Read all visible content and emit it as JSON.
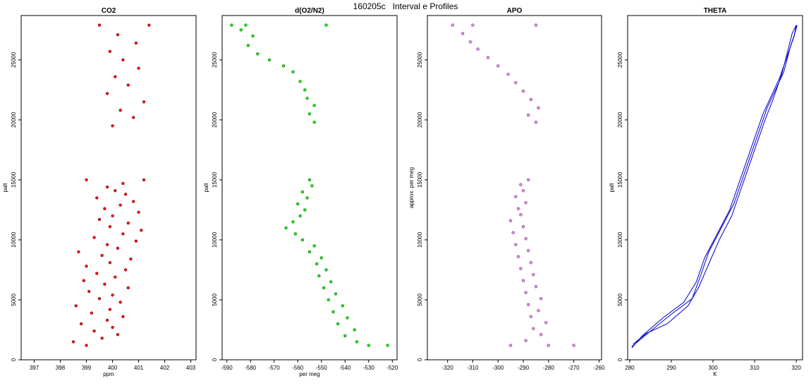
{
  "figure": {
    "title": "160205c   Interval e Profiles"
  },
  "chart_data": [
    {
      "type": "scatter",
      "title": "CO2",
      "xlabel": "ppm",
      "ylabel": "palt",
      "xlim": [
        396.5,
        403.2
      ],
      "ylim": [
        0,
        28700
      ],
      "xticks": [
        397,
        398,
        399,
        400,
        401,
        402,
        403
      ],
      "yticks": [
        0,
        5000,
        10000,
        15000,
        20000,
        25000
      ],
      "series": [
        {
          "color": "#ff0000",
          "points": [
            [
              399.0,
              1200
            ],
            [
              398.5,
              1500
            ],
            [
              399.6,
              1800
            ],
            [
              400.2,
              2100
            ],
            [
              399.3,
              2400
            ],
            [
              400.0,
              2700
            ],
            [
              398.8,
              3000
            ],
            [
              399.8,
              3300
            ],
            [
              400.4,
              3600
            ],
            [
              399.2,
              3900
            ],
            [
              399.9,
              4200
            ],
            [
              398.6,
              4500
            ],
            [
              400.3,
              4800
            ],
            [
              399.5,
              5100
            ],
            [
              400.0,
              5400
            ],
            [
              399.1,
              5700
            ],
            [
              400.6,
              6000
            ],
            [
              399.7,
              6300
            ],
            [
              398.9,
              6600
            ],
            [
              400.1,
              6900
            ],
            [
              399.4,
              7200
            ],
            [
              400.5,
              7500
            ],
            [
              399.0,
              7800
            ],
            [
              399.9,
              8100
            ],
            [
              400.7,
              8400
            ],
            [
              399.6,
              8700
            ],
            [
              398.7,
              9000
            ],
            [
              400.2,
              9300
            ],
            [
              399.8,
              9600
            ],
            [
              400.9,
              9900
            ],
            [
              399.3,
              10200
            ],
            [
              400.4,
              10500
            ],
            [
              401.1,
              10800
            ],
            [
              399.9,
              11100
            ],
            [
              400.6,
              11400
            ],
            [
              399.5,
              11700
            ],
            [
              400.0,
              12000
            ],
            [
              401.0,
              12300
            ],
            [
              399.7,
              12600
            ],
            [
              400.3,
              12900
            ],
            [
              400.8,
              13200
            ],
            [
              399.4,
              13500
            ],
            [
              400.5,
              13800
            ],
            [
              400.1,
              14100
            ],
            [
              399.8,
              14400
            ],
            [
              400.4,
              14700
            ],
            [
              401.2,
              15000
            ],
            [
              399.0,
              15000
            ],
            [
              400.0,
              19500
            ],
            [
              400.8,
              20200
            ],
            [
              400.3,
              20800
            ],
            [
              401.2,
              21500
            ],
            [
              399.8,
              22200
            ],
            [
              400.6,
              22900
            ],
            [
              400.1,
              23600
            ],
            [
              401.0,
              24300
            ],
            [
              400.4,
              25000
            ],
            [
              399.9,
              25700
            ],
            [
              400.9,
              26400
            ],
            [
              400.2,
              27100
            ],
            [
              401.4,
              27900
            ],
            [
              399.5,
              27900
            ]
          ]
        }
      ]
    },
    {
      "type": "scatter",
      "title": "d(O2/N2)",
      "xlabel": "per meg",
      "ylabel": "palt",
      "xlim": [
        -592,
        -518
      ],
      "ylim": [
        0,
        28700
      ],
      "xticks": [
        -590,
        -580,
        -570,
        -560,
        -550,
        -540,
        -530,
        -520
      ],
      "yticks": [
        0,
        5000,
        10000,
        15000,
        20000,
        25000
      ],
      "series": [
        {
          "color": "#00ee00",
          "points": [
            [
              -530,
              1200
            ],
            [
              -522,
              1200
            ],
            [
              -535,
              1500
            ],
            [
              -540,
              2000
            ],
            [
              -536,
              2500
            ],
            [
              -543,
              3000
            ],
            [
              -539,
              3500
            ],
            [
              -545,
              4000
            ],
            [
              -541,
              4500
            ],
            [
              -547,
              5000
            ],
            [
              -544,
              5500
            ],
            [
              -549,
              6000
            ],
            [
              -546,
              6500
            ],
            [
              -551,
              7000
            ],
            [
              -548,
              7500
            ],
            [
              -552,
              8000
            ],
            [
              -550,
              8500
            ],
            [
              -555,
              9000
            ],
            [
              -553,
              9500
            ],
            [
              -558,
              10000
            ],
            [
              -561,
              10500
            ],
            [
              -565,
              11000
            ],
            [
              -562,
              11500
            ],
            [
              -559,
              12000
            ],
            [
              -557,
              12500
            ],
            [
              -560,
              13000
            ],
            [
              -556,
              13500
            ],
            [
              -558,
              14000
            ],
            [
              -554,
              14500
            ],
            [
              -555,
              15000
            ],
            [
              -553,
              19800
            ],
            [
              -555,
              20500
            ],
            [
              -553,
              21200
            ],
            [
              -556,
              21800
            ],
            [
              -557,
              22500
            ],
            [
              -559,
              23200
            ],
            [
              -562,
              24000
            ],
            [
              -566,
              24500
            ],
            [
              -572,
              25000
            ],
            [
              -577,
              25500
            ],
            [
              -581,
              26200
            ],
            [
              -579,
              27000
            ],
            [
              -584,
              27500
            ],
            [
              -588,
              27900
            ],
            [
              -582,
              27900
            ],
            [
              -548,
              27900
            ]
          ]
        }
      ]
    },
    {
      "type": "scatter",
      "title": "APO",
      "xlabel": "",
      "ylabel": "approx. per meg",
      "xlim": [
        -328,
        -259
      ],
      "ylim": [
        0,
        28700
      ],
      "xticks": [
        -320,
        -310,
        -300,
        -290,
        -280,
        -270,
        -260
      ],
      "yticks": [
        0,
        5000,
        10000,
        15000,
        20000,
        25000
      ],
      "series": [
        {
          "color": "#ee82ee",
          "points": [
            [
              -295,
              1200
            ],
            [
              -280,
              1200
            ],
            [
              -270,
              1200
            ],
            [
              -289,
              1600
            ],
            [
              -283,
              2100
            ],
            [
              -286,
              2600
            ],
            [
              -281,
              3100
            ],
            [
              -287,
              3600
            ],
            [
              -284,
              4100
            ],
            [
              -288,
              4600
            ],
            [
              -283,
              5100
            ],
            [
              -289,
              5600
            ],
            [
              -285,
              6100
            ],
            [
              -290,
              6600
            ],
            [
              -286,
              7100
            ],
            [
              -291,
              7600
            ],
            [
              -287,
              8100
            ],
            [
              -292,
              8600
            ],
            [
              -288,
              9100
            ],
            [
              -293,
              9600
            ],
            [
              -289,
              10100
            ],
            [
              -294,
              10600
            ],
            [
              -290,
              11100
            ],
            [
              -295,
              11600
            ],
            [
              -291,
              12100
            ],
            [
              -292,
              12600
            ],
            [
              -289,
              13100
            ],
            [
              -293,
              13600
            ],
            [
              -290,
              14100
            ],
            [
              -291,
              14600
            ],
            [
              -288,
              15000
            ],
            [
              -285,
              19800
            ],
            [
              -288,
              20400
            ],
            [
              -284,
              21000
            ],
            [
              -287,
              21700
            ],
            [
              -290,
              22400
            ],
            [
              -293,
              23100
            ],
            [
              -296,
              23800
            ],
            [
              -300,
              24500
            ],
            [
              -304,
              25200
            ],
            [
              -308,
              25900
            ],
            [
              -311,
              26500
            ],
            [
              -314,
              27200
            ],
            [
              -318,
              27900
            ],
            [
              -310,
              27900
            ],
            [
              -285,
              27900
            ]
          ]
        }
      ]
    },
    {
      "type": "line",
      "title": "THETA",
      "xlabel": "K",
      "ylabel": "palt",
      "xlim": [
        279.5,
        321.5
      ],
      "ylim": [
        0,
        28700
      ],
      "xticks": [
        280,
        290,
        300,
        310,
        320
      ],
      "yticks": [
        0,
        5000,
        10000,
        15000,
        20000,
        25000
      ],
      "series": [
        {
          "color": "#0000cc",
          "x": [
            280.5,
            283,
            288,
            293,
            296,
            298,
            301,
            304,
            306,
            308,
            310,
            312,
            314,
            316,
            318,
            319.5,
            320
          ],
          "y": [
            1000,
            2000,
            3500,
            4800,
            6500,
            8500,
            10500,
            12500,
            14500,
            16500,
            18500,
            20500,
            22000,
            23500,
            25500,
            27000,
            27900
          ]
        },
        {
          "color": "#0000cc",
          "x": [
            280.5,
            285,
            290,
            295,
            297,
            299,
            302,
            305,
            307,
            309,
            311,
            313,
            315,
            317,
            318.5,
            319.8,
            320.2
          ],
          "y": [
            1100,
            2400,
            3800,
            5100,
            7000,
            9000,
            11000,
            13000,
            15000,
            17000,
            19000,
            21000,
            22500,
            24000,
            26000,
            27400,
            27900
          ]
        },
        {
          "color": "#0000cc",
          "x": [
            280.8,
            284,
            289,
            294,
            296.5,
            299,
            301.5,
            304.5,
            306.5,
            308.5,
            310.5,
            312.5,
            314.5,
            316.5,
            318,
            319,
            320
          ],
          "y": [
            1300,
            2200,
            3000,
            4500,
            6000,
            8000,
            10000,
            12000,
            14000,
            16000,
            18000,
            20000,
            21800,
            23800,
            25800,
            27200,
            27900
          ]
        }
      ]
    }
  ]
}
